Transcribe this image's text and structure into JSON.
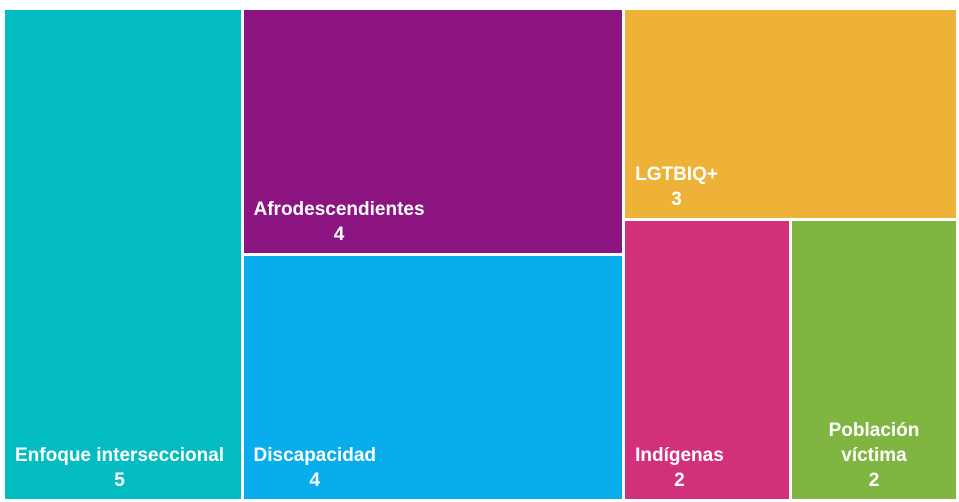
{
  "chart_data": {
    "type": "treemap",
    "categories": [
      "Enfoque interseccional",
      "Afrodescendientes",
      "Discapacidad",
      "LGTBIQ+",
      "Indígenas",
      "Población víctima"
    ],
    "values": [
      5,
      4,
      4,
      3,
      2,
      2
    ],
    "colors": [
      "#04bdc3",
      "#8c1480",
      "#08aeec",
      "#edb237",
      "#d3307c",
      "#80b541"
    ]
  }
}
